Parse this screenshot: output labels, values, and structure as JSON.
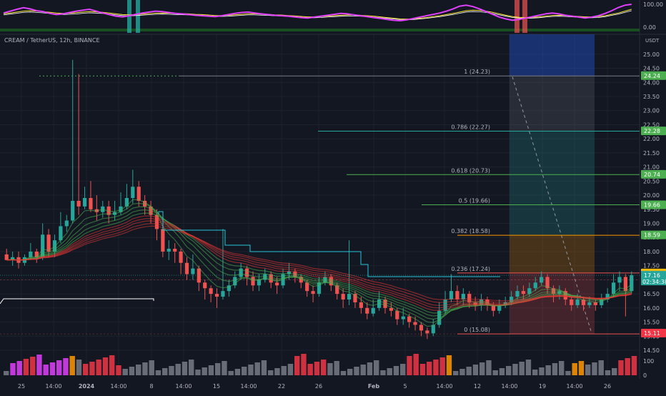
{
  "header": {
    "symbol": "CREAM / TetherUS, 12h, BINANCE",
    "currency": "USDT"
  },
  "colors": {
    "bg": "#131722",
    "up": "#26a69a",
    "down": "#ef5350",
    "grid": "#1e222d",
    "text": "#b2b5be"
  },
  "chart_data": {
    "type": "candlestick",
    "title": "",
    "xlabel": "",
    "ylabel": "",
    "ylim": [
      14.5,
      25.3
    ],
    "y_ticks": [
      "25.00",
      "24.50",
      "24.00",
      "23.50",
      "23.00",
      "22.50",
      "22.00",
      "21.50",
      "21.00",
      "20.50",
      "20.00",
      "19.50",
      "19.00",
      "18.50",
      "18.00",
      "17.50",
      "17.00",
      "16.50",
      "16.00",
      "15.50",
      "15.00",
      "14.50"
    ],
    "x_ticks": [
      "25",
      "14:00",
      "2024",
      "14:00",
      "8",
      "14:00",
      "15",
      "14:00",
      "22",
      "26",
      "Feb",
      "5",
      "14:00",
      "12",
      "14:00",
      "19",
      "14:00",
      "26"
    ],
    "candles": [
      [
        17.9,
        17.7,
        18.1,
        17.7
      ],
      [
        17.7,
        17.8,
        18.0,
        17.5
      ],
      [
        17.8,
        17.6,
        18.0,
        17.4
      ],
      [
        17.6,
        17.8,
        17.9,
        17.5
      ],
      [
        17.8,
        18.0,
        18.3,
        17.7
      ],
      [
        18.0,
        17.8,
        18.1,
        17.6
      ],
      [
        17.8,
        18.6,
        19.0,
        17.7
      ],
      [
        18.6,
        18.0,
        18.8,
        17.8
      ],
      [
        18.0,
        18.4,
        18.6,
        17.8
      ],
      [
        18.4,
        18.9,
        19.4,
        18.3
      ],
      [
        18.9,
        19.1,
        19.3,
        18.7
      ],
      [
        19.1,
        19.8,
        24.8,
        19.0
      ],
      [
        19.8,
        19.6,
        24.3,
        19.3
      ],
      [
        19.6,
        19.9,
        20.3,
        19.5
      ],
      [
        19.9,
        19.5,
        20.5,
        19.4
      ],
      [
        19.5,
        19.4,
        20.0,
        19.1
      ],
      [
        19.4,
        19.6,
        19.8,
        19.2
      ],
      [
        19.6,
        19.3,
        19.8,
        19.0
      ],
      [
        19.3,
        19.4,
        19.8,
        19.1
      ],
      [
        19.4,
        19.6,
        20.1,
        19.3
      ],
      [
        19.6,
        19.9,
        20.4,
        19.5
      ],
      [
        19.9,
        20.3,
        20.9,
        19.7
      ],
      [
        20.3,
        19.8,
        20.5,
        19.6
      ],
      [
        19.8,
        19.6,
        20.0,
        19.3
      ],
      [
        19.6,
        19.3,
        19.8,
        19.0
      ],
      [
        19.3,
        18.8,
        19.5,
        18.4
      ],
      [
        18.8,
        18.0,
        18.9,
        17.8
      ],
      [
        18.0,
        18.1,
        18.4,
        17.7
      ],
      [
        18.1,
        18.0,
        18.3,
        17.6
      ],
      [
        18.0,
        17.6,
        18.1,
        17.2
      ],
      [
        17.6,
        17.2,
        17.8,
        17.0
      ],
      [
        17.2,
        17.4,
        17.9,
        17.0
      ],
      [
        17.4,
        16.9,
        17.5,
        16.6
      ],
      [
        16.9,
        16.7,
        17.0,
        16.3
      ],
      [
        16.7,
        16.5,
        16.8,
        16.2
      ],
      [
        16.5,
        16.4,
        16.7,
        16.0
      ],
      [
        16.4,
        16.6,
        18.8,
        16.3
      ],
      [
        16.6,
        16.8,
        17.0,
        16.4
      ],
      [
        16.8,
        17.1,
        17.3,
        16.7
      ],
      [
        17.1,
        17.4,
        17.6,
        17.0
      ],
      [
        17.4,
        17.1,
        17.5,
        16.8
      ],
      [
        17.1,
        16.8,
        17.3,
        16.6
      ],
      [
        16.8,
        17.0,
        17.2,
        16.6
      ],
      [
        17.0,
        17.2,
        17.4,
        16.9
      ],
      [
        17.2,
        16.9,
        17.3,
        16.7
      ],
      [
        16.9,
        16.8,
        17.1,
        16.5
      ],
      [
        16.8,
        17.2,
        17.4,
        16.7
      ],
      [
        17.2,
        17.3,
        17.6,
        17.0
      ],
      [
        17.3,
        17.1,
        17.4,
        16.9
      ],
      [
        17.1,
        16.9,
        17.2,
        16.7
      ],
      [
        16.9,
        16.6,
        17.0,
        16.4
      ],
      [
        16.6,
        16.5,
        16.8,
        16.2
      ],
      [
        16.5,
        16.9,
        17.1,
        16.4
      ],
      [
        16.9,
        17.1,
        17.3,
        16.8
      ],
      [
        17.1,
        16.8,
        17.2,
        16.6
      ],
      [
        16.8,
        16.5,
        16.9,
        16.3
      ],
      [
        16.5,
        16.3,
        16.7,
        16.0
      ],
      [
        16.3,
        16.5,
        18.4,
        16.1
      ],
      [
        16.5,
        16.2,
        16.6,
        16.0
      ],
      [
        16.2,
        16.0,
        16.4,
        15.8
      ],
      [
        16.0,
        15.8,
        16.2,
        15.6
      ],
      [
        15.8,
        16.0,
        16.3,
        15.7
      ],
      [
        16.0,
        16.3,
        16.6,
        15.9
      ],
      [
        16.3,
        16.0,
        16.4,
        15.8
      ],
      [
        16.0,
        15.9,
        16.2,
        15.7
      ],
      [
        15.9,
        15.6,
        16.0,
        15.4
      ],
      [
        15.6,
        15.7,
        16.0,
        15.4
      ],
      [
        15.7,
        15.5,
        15.8,
        15.3
      ],
      [
        15.5,
        15.4,
        15.7,
        15.2
      ],
      [
        15.4,
        15.2,
        15.5,
        15.0
      ],
      [
        15.2,
        15.1,
        15.3,
        14.9
      ],
      [
        15.1,
        15.4,
        15.6,
        15.0
      ],
      [
        15.4,
        15.9,
        16.2,
        15.3
      ],
      [
        15.9,
        16.3,
        16.6,
        15.8
      ],
      [
        16.3,
        16.6,
        17.2,
        16.2
      ],
      [
        16.6,
        16.3,
        16.8,
        16.1
      ],
      [
        16.3,
        16.5,
        16.7,
        16.1
      ],
      [
        16.5,
        16.2,
        16.6,
        16.0
      ],
      [
        16.2,
        16.1,
        16.4,
        15.9
      ],
      [
        16.1,
        16.3,
        16.5,
        15.9
      ],
      [
        16.3,
        16.1,
        16.4,
        15.9
      ],
      [
        16.1,
        15.9,
        16.2,
        15.7
      ],
      [
        15.9,
        16.1,
        16.3,
        15.8
      ],
      [
        16.1,
        16.2,
        16.4,
        16.0
      ],
      [
        16.2,
        16.4,
        16.6,
        16.1
      ],
      [
        16.4,
        16.6,
        16.8,
        16.3
      ],
      [
        16.6,
        16.5,
        16.8,
        16.3
      ],
      [
        16.5,
        16.7,
        16.9,
        16.4
      ],
      [
        16.7,
        16.9,
        17.1,
        16.6
      ],
      [
        16.9,
        17.1,
        17.3,
        16.8
      ],
      [
        17.1,
        16.7,
        17.2,
        16.5
      ],
      [
        16.7,
        16.5,
        16.8,
        16.2
      ],
      [
        16.5,
        16.6,
        16.8,
        16.3
      ],
      [
        16.6,
        16.3,
        16.7,
        16.1
      ],
      [
        16.3,
        16.1,
        16.4,
        15.9
      ],
      [
        16.1,
        16.3,
        16.5,
        16.0
      ],
      [
        16.3,
        16.1,
        16.4,
        15.9
      ],
      [
        16.1,
        16.2,
        16.4,
        16.0
      ],
      [
        16.2,
        16.1,
        16.3,
        15.9
      ],
      [
        16.1,
        16.3,
        16.5,
        16.0
      ],
      [
        16.3,
        16.5,
        16.7,
        16.2
      ],
      [
        16.5,
        16.9,
        17.2,
        16.4
      ],
      [
        16.9,
        17.1,
        17.3,
        16.6
      ],
      [
        17.1,
        16.6,
        17.2,
        15.7
      ],
      [
        16.6,
        17.16,
        17.3,
        16.5
      ]
    ],
    "fibonacci": [
      {
        "level": "1 (24.23)",
        "value": 24.23
      },
      {
        "level": "0.786 (22.27)",
        "value": 22.27
      },
      {
        "level": "0.618 (20.73)",
        "value": 20.73
      },
      {
        "level": "0.5 (19.66)",
        "value": 19.66
      },
      {
        "level": "0.382 (18.58)",
        "value": 18.58
      },
      {
        "level": "0.236 (17.24)",
        "value": 17.24
      },
      {
        "level": "0 (15.08)",
        "value": 15.08
      }
    ],
    "price_tags": [
      {
        "text": "24.24",
        "value": 24.24,
        "color": "#4caf50"
      },
      {
        "text": "22.28",
        "value": 22.28,
        "color": "#4caf50"
      },
      {
        "text": "20.74",
        "value": 20.74,
        "color": "#4caf50"
      },
      {
        "text": "19.66",
        "value": 19.66,
        "color": "#4caf50"
      },
      {
        "text": "18.59",
        "value": 18.59,
        "color": "#4caf50"
      },
      {
        "text": "17.24",
        "value": 17.24,
        "color": "#f0b90b"
      },
      {
        "text": "15.11",
        "value": 15.11,
        "color": "#f23645"
      }
    ],
    "last_price": {
      "value": 17.16,
      "text": "17.16",
      "timer": "02:34:38"
    },
    "oscillator": {
      "labels": [
        "100.00",
        "0.00"
      ],
      "range": [
        0,
        100
      ],
      "rsi": [
        62,
        70,
        78,
        85,
        80,
        72,
        68,
        60,
        55,
        58,
        64,
        70,
        74,
        78,
        70,
        62,
        55,
        48,
        45,
        50,
        56,
        62,
        66,
        70,
        68,
        64,
        60,
        58,
        55,
        52,
        50,
        48,
        46,
        50,
        55,
        60,
        64,
        66,
        62,
        58,
        55,
        52,
        50,
        48,
        45,
        42,
        40,
        44,
        48,
        52,
        56,
        60,
        58,
        54,
        50,
        46,
        42,
        38,
        34,
        30,
        28,
        32,
        38,
        44,
        50,
        56,
        62,
        70,
        80,
        92,
        96,
        90,
        80,
        68,
        56,
        44,
        36,
        30,
        34,
        40,
        46,
        52,
        58,
        62,
        58,
        52,
        48,
        44,
        40,
        44,
        50,
        60,
        72,
        86,
        96,
        100
      ],
      "yellow": [
        58,
        62,
        66,
        70,
        72,
        70,
        68,
        65,
        62,
        60,
        61,
        63,
        66,
        68,
        67,
        65,
        62,
        58,
        55,
        54,
        55,
        57,
        59,
        61,
        62,
        61,
        60,
        59,
        58,
        56,
        55,
        53,
        51,
        51,
        52,
        54,
        56,
        58,
        58,
        57,
        56,
        54,
        53,
        51,
        49,
        47,
        45,
        45,
        46,
        48,
        50,
        52,
        53,
        53,
        52,
        50,
        48,
        45,
        42,
        39,
        36,
        35,
        36,
        39,
        42,
        46,
        50,
        55,
        60,
        66,
        72,
        74,
        73,
        70,
        65,
        58,
        52,
        46,
        43,
        42,
        43,
        45,
        48,
        51,
        52,
        51,
        49,
        47,
        45,
        45,
        46,
        50,
        56,
        62,
        70,
        78
      ]
    },
    "volume_colors": [
      "#787b86",
      "#e040fb",
      "#f23645",
      "#ff9800",
      "#787b86"
    ],
    "volume_label": "100"
  }
}
